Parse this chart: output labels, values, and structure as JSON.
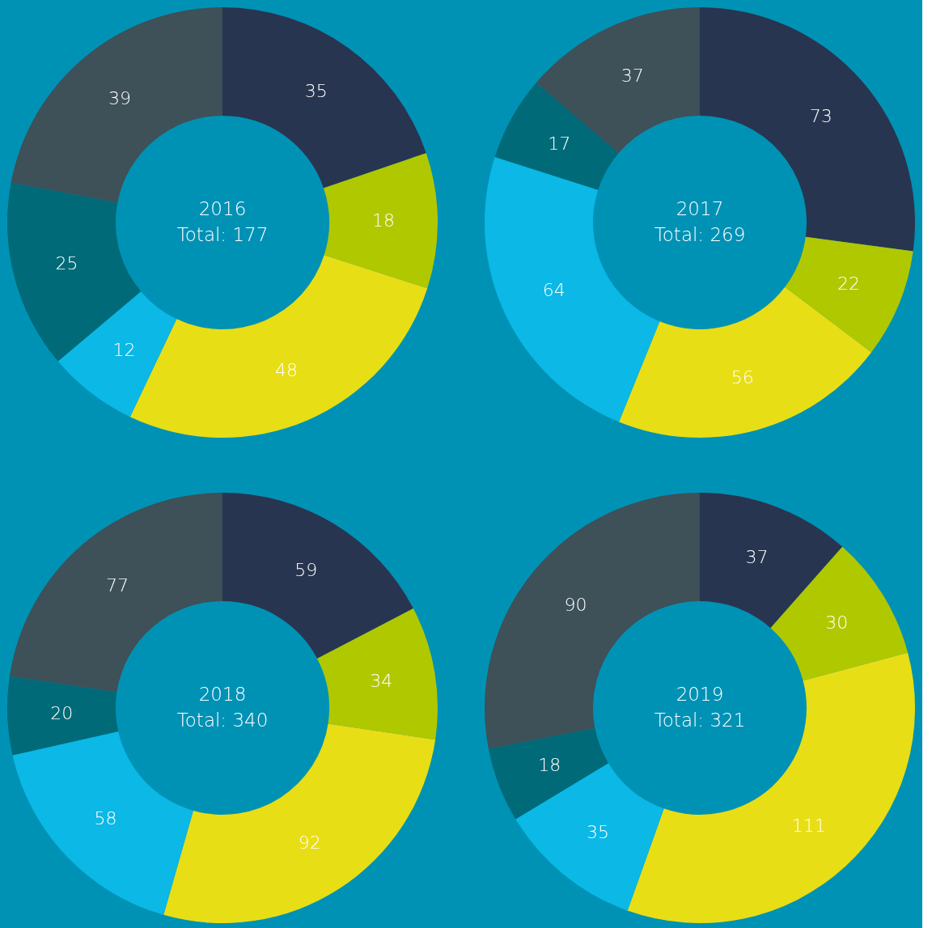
{
  "chart_data": [
    {
      "type": "donut",
      "title": "2016",
      "subtitle": "Total: 177",
      "categories": [
        null,
        null,
        null,
        null,
        null,
        null
      ],
      "values": [
        35,
        18,
        48,
        12,
        25,
        39
      ],
      "colors": [
        "#283550",
        "#b0c800",
        "#e8de15",
        "#0bb8e6",
        "#006a78",
        "#3e5058"
      ],
      "data_labels": true,
      "legend": false
    },
    {
      "type": "donut",
      "title": "2017",
      "subtitle": "Total: 269",
      "categories": [
        null,
        null,
        null,
        null,
        null,
        null
      ],
      "values": [
        73,
        22,
        56,
        64,
        17,
        37
      ],
      "colors": [
        "#283550",
        "#b0c800",
        "#e8de15",
        "#0bb8e6",
        "#006a78",
        "#3e5058"
      ],
      "data_labels": true,
      "legend": false
    },
    {
      "type": "donut",
      "title": "2018",
      "subtitle": "Total: 340",
      "categories": [
        null,
        null,
        null,
        null,
        null,
        null
      ],
      "values": [
        59,
        34,
        92,
        58,
        20,
        77
      ],
      "colors": [
        "#283550",
        "#b0c800",
        "#e8de15",
        "#0bb8e6",
        "#006a78",
        "#3e5058"
      ],
      "data_labels": true,
      "legend": false
    },
    {
      "type": "donut",
      "title": "2019",
      "subtitle": "Total: 321",
      "categories": [
        null,
        null,
        null,
        null,
        null,
        null
      ],
      "values": [
        37,
        30,
        111,
        35,
        18,
        90
      ],
      "colors": [
        "#283550",
        "#b0c800",
        "#e8de15",
        "#0bb8e6",
        "#006a78",
        "#3e5058"
      ],
      "data_labels": true,
      "legend": false
    }
  ]
}
